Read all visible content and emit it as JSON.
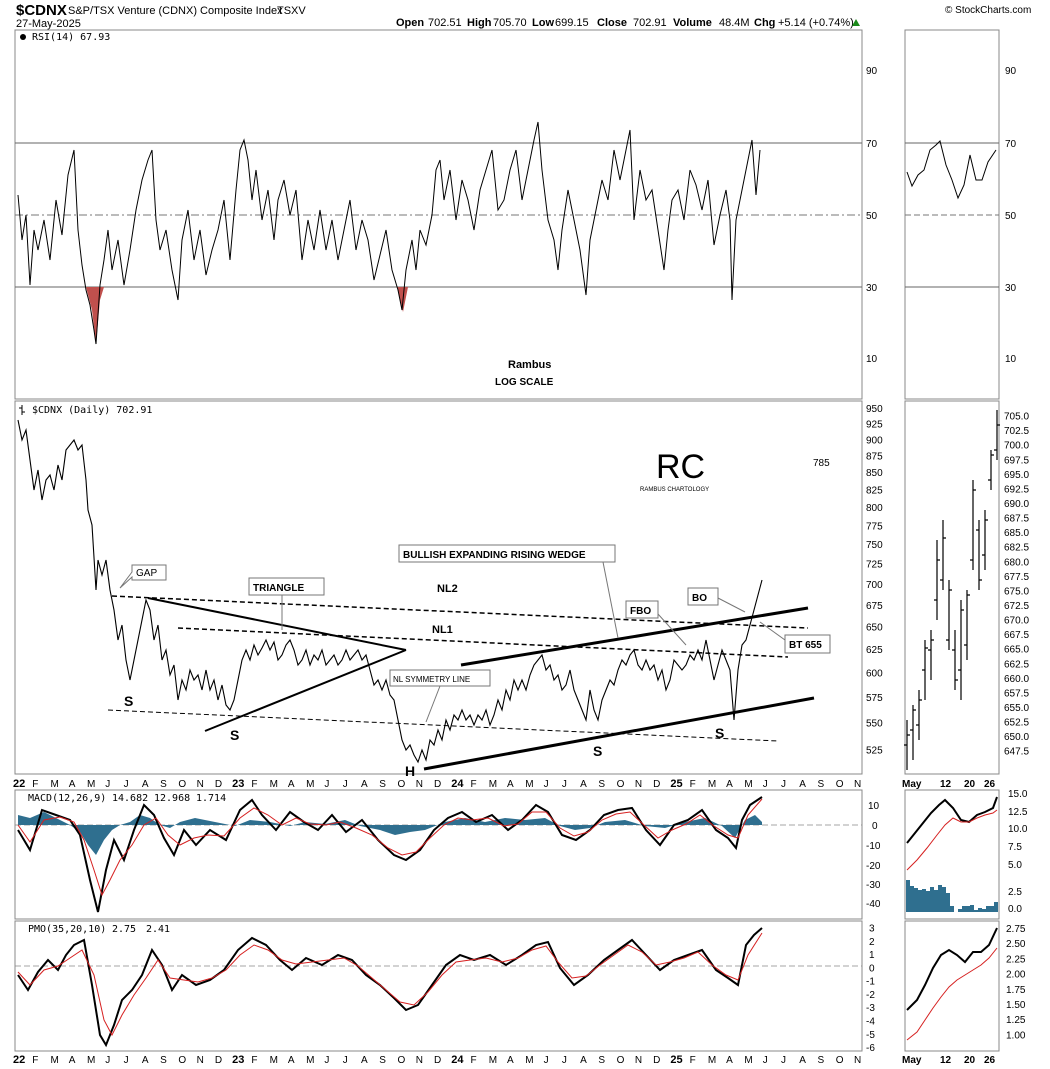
{
  "header": {
    "symbol": "$CDNX",
    "name": "S&P/TSX Venture (CDNX) Composite Index",
    "exchange": "TSXV",
    "date": "27-May-2025",
    "credit": "© StockCharts.com",
    "open_label": "Open",
    "open": "702.51",
    "high_label": "High",
    "high": "705.70",
    "low_label": "Low",
    "low": "699.15",
    "close_label": "Close",
    "close": "702.91",
    "volume_label": "Volume",
    "volume": "48.4M",
    "chg_label": "Chg",
    "chg": "+5.14 (+0.74%)"
  },
  "colors": {
    "macd_signal": "#d62020",
    "histogram": "#2f6f8f",
    "rsi_oversold_fill": "#c0504d",
    "annotation_blue": "#1a1ab0",
    "logo_gold": "#d4a017"
  },
  "rsi_panel": {
    "label": "RSI(14) 67.93",
    "y_ticks": [
      "90",
      "70",
      "50",
      "30",
      "10"
    ],
    "y_tick_values": [
      90,
      70,
      50,
      30,
      10
    ],
    "ylim": [
      0,
      100
    ],
    "note_author": "Rambus",
    "note_scale": "LOG SCALE"
  },
  "price_panel": {
    "label": "$CDNX (Daily) 702.91",
    "y_ticks": [
      "950",
      "925",
      "900",
      "875",
      "850",
      "825",
      "800",
      "775",
      "750",
      "725",
      "700",
      "675",
      "650",
      "625",
      "600",
      "575",
      "550",
      "525"
    ],
    "y_tick_values": [
      950,
      925,
      900,
      875,
      850,
      825,
      800,
      775,
      750,
      725,
      700,
      675,
      650,
      625,
      600,
      575,
      550,
      525
    ],
    "ylim": [
      503,
      962
    ],
    "logo_letters": "RC",
    "logo_text": "RAMBUS CHARTOLOGY",
    "level_785": "785",
    "annotations": {
      "gap": "GAP",
      "triangle": "TRIANGLE",
      "wedge": "BULLISH EXPANDING RISING WEDGE",
      "nl2": "NL2",
      "nl1": "NL1",
      "symmetry": "NL SYMMETRY LINE",
      "fbo": "FBO",
      "bo": "BO",
      "bt": "BT 655",
      "s1": "S",
      "s2": "S",
      "h": "H",
      "s3": "S",
      "s4": "S"
    }
  },
  "macd_panel": {
    "label_prefix": "MACD(12,26,9)",
    "macd_value": "14.682",
    "signal_value": "12.968",
    "hist_value": "1.714",
    "y_ticks": [
      "10",
      "0",
      "-10",
      "-20",
      "-30",
      "-40"
    ],
    "y_tick_values": [
      10,
      0,
      -10,
      -20,
      -30,
      -40
    ],
    "ylim": [
      -45,
      15
    ]
  },
  "pmo_panel": {
    "label_prefix": "PMO(35,20,10)",
    "pmo_value": "2.75",
    "signal_value": "2.41",
    "y_ticks": [
      "3",
      "2",
      "1",
      "0",
      "-1",
      "-2",
      "-3",
      "-4",
      "-5",
      "-6"
    ],
    "y_tick_values": [
      3,
      2,
      1,
      0,
      -1,
      -2,
      -3,
      -4,
      -5,
      -6
    ],
    "ylim": [
      -6.3,
      3.5
    ]
  },
  "x_axis_labels": [
    "22",
    "F",
    "M",
    "A",
    "M",
    "J",
    "J",
    "A",
    "S",
    "O",
    "N",
    "D",
    "23",
    "F",
    "M",
    "A",
    "M",
    "J",
    "J",
    "A",
    "S",
    "O",
    "N",
    "D",
    "24",
    "F",
    "M",
    "A",
    "M",
    "J",
    "J",
    "A",
    "S",
    "O",
    "N",
    "D",
    "25",
    "F",
    "M",
    "A",
    "M",
    "J",
    "J",
    "A",
    "S",
    "O",
    "N"
  ],
  "zoom_panel": {
    "rsi_ticks": [
      "90",
      "70",
      "50",
      "30",
      "10"
    ],
    "price_ticks": [
      "705.0",
      "702.5",
      "700.0",
      "697.5",
      "695.0",
      "692.5",
      "690.0",
      "687.5",
      "685.0",
      "682.5",
      "680.0",
      "677.5",
      "675.0",
      "672.5",
      "670.0",
      "667.5",
      "665.0",
      "662.5",
      "660.0",
      "657.5",
      "655.0",
      "652.5",
      "650.0",
      "647.5"
    ],
    "price_tick_values": [
      705.0,
      702.5,
      700.0,
      697.5,
      695.0,
      692.5,
      690.0,
      687.5,
      685.0,
      682.5,
      680.0,
      677.5,
      675.0,
      672.5,
      670.0,
      667.5,
      665.0,
      662.5,
      660.0,
      657.5,
      655.0,
      652.5,
      650.0,
      647.5
    ],
    "macd_ticks": [
      "15.0",
      "12.5",
      "10.0",
      "7.5",
      "5.0",
      "2.5",
      "0.0"
    ],
    "pmo_ticks": [
      "2.75",
      "2.50",
      "2.25",
      "2.00",
      "1.75",
      "1.50",
      "1.25",
      "1.00"
    ],
    "x_labels": [
      "May",
      "12",
      "20",
      "26"
    ]
  },
  "chart_data": {
    "type": "line",
    "title": "$CDNX S&P/TSX Venture (CDNX) Composite Index TSXV",
    "y_scale": "log",
    "x": [
      "2022-01",
      "2022-02",
      "2022-03",
      "2022-04",
      "2022-05",
      "2022-06",
      "2022-07",
      "2022-08",
      "2022-09",
      "2022-10",
      "2022-11",
      "2022-12",
      "2023-01",
      "2023-02",
      "2023-03",
      "2023-04",
      "2023-05",
      "2023-06",
      "2023-07",
      "2023-08",
      "2023-09",
      "2023-10",
      "2023-11",
      "2023-12",
      "2024-01",
      "2024-02",
      "2024-03",
      "2024-04",
      "2024-05",
      "2024-06",
      "2024-07",
      "2024-08",
      "2024-09",
      "2024-10",
      "2024-11",
      "2024-12",
      "2025-01",
      "2025-02",
      "2025-03",
      "2025-04",
      "2025-05"
    ],
    "series": [
      {
        "name": "$CDNX (Daily)",
        "values": [
          935,
          880,
          900,
          905,
          790,
          680,
          620,
          670,
          595,
          585,
          605,
          600,
          620,
          640,
          625,
          620,
          625,
          610,
          615,
          560,
          545,
          520,
          535,
          560,
          565,
          555,
          570,
          600,
          615,
          625,
          600,
          570,
          605,
          630,
          625,
          615,
          635,
          640,
          650,
          570,
          703
        ]
      },
      {
        "name": "RSI(14)",
        "values": [
          55,
          40,
          65,
          55,
          30,
          25,
          45,
          60,
          35,
          30,
          45,
          55,
          60,
          70,
          45,
          50,
          55,
          40,
          50,
          30,
          25,
          45,
          55,
          60,
          65,
          50,
          55,
          60,
          75,
          60,
          40,
          30,
          55,
          70,
          50,
          55,
          60,
          65,
          55,
          28,
          68
        ]
      },
      {
        "name": "MACD(12,26,9)",
        "values": [
          5,
          -10,
          2,
          3,
          -20,
          -35,
          -15,
          5,
          -10,
          -15,
          -5,
          0,
          5,
          10,
          0,
          2,
          3,
          -5,
          0,
          -15,
          -18,
          -20,
          -10,
          2,
          5,
          0,
          2,
          5,
          10,
          5,
          -8,
          -10,
          5,
          10,
          0,
          2,
          5,
          8,
          4,
          -10,
          14.682
        ]
      },
      {
        "name": "PMO(35,20,10)",
        "values": [
          0.5,
          -0.5,
          1,
          1.5,
          -2,
          -5,
          -3,
          0.5,
          -1,
          -1.5,
          -0.5,
          0,
          1,
          2,
          0.5,
          0.5,
          1,
          -0.5,
          0,
          -2,
          -2.5,
          -3,
          -1.5,
          0.5,
          1,
          0.5,
          1,
          1.5,
          2,
          1,
          -1,
          -1.5,
          1,
          2,
          1,
          0.5,
          1,
          1.5,
          1,
          -1,
          2.75
        ]
      }
    ],
    "ylim": [
      503,
      962
    ]
  }
}
